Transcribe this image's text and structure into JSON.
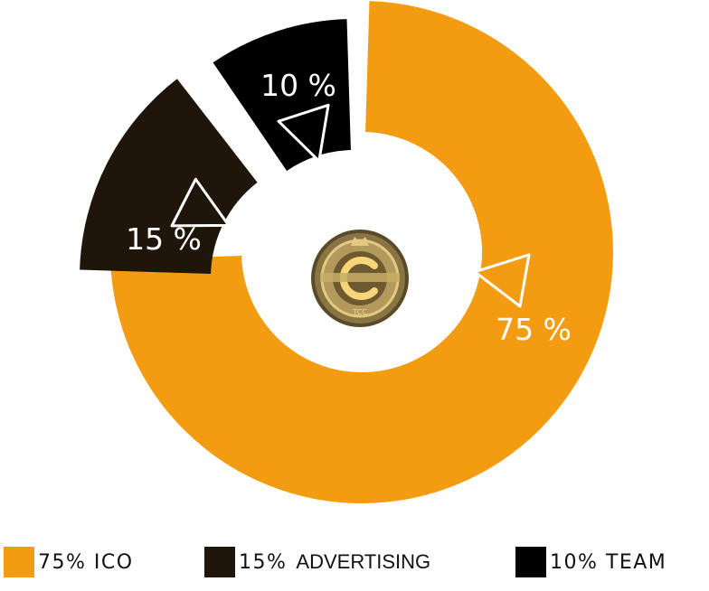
{
  "chart_data": {
    "type": "pie",
    "slices": [
      {
        "label": "75% ICO",
        "value": 75,
        "display": "75 %",
        "color": "#f39c12"
      },
      {
        "label": "15% ADVERTISING",
        "value": 15,
        "display": "15 %",
        "color": "#20150b"
      },
      {
        "label": "10% TEAM",
        "value": 10,
        "display": "10 %",
        "color": "#000000"
      }
    ],
    "center_logo_text": "TCC"
  },
  "legend": {
    "ico": "75% ICO",
    "advertising_pct": "15%",
    "advertising_word": "ADVERTISING",
    "team": "10% TEAM"
  }
}
